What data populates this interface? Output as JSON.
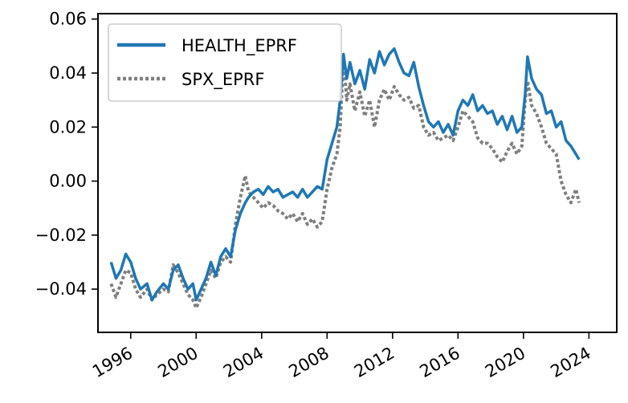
{
  "chart_data": {
    "type": "line",
    "title": "",
    "xlabel": "",
    "ylabel": "",
    "xlim": [
      1994.0,
      2025.7
    ],
    "ylim": [
      -0.056,
      0.062
    ],
    "x_ticks": [
      1996,
      2000,
      2004,
      2008,
      2012,
      2016,
      2020,
      2024
    ],
    "x_tick_labels": [
      "1996",
      "2000",
      "2004",
      "2008",
      "2012",
      "2016",
      "2020",
      "2024"
    ],
    "y_ticks": [
      -0.04,
      -0.02,
      0.0,
      0.02,
      0.04,
      0.06
    ],
    "y_tick_labels": [
      "−0.04",
      "−0.02",
      "0.00",
      "0.02",
      "0.04",
      "0.06"
    ],
    "grid": false,
    "legend": {
      "position": "top-left"
    },
    "series": [
      {
        "name": "HEALTH_EPRF",
        "color": "#1f77b4",
        "style": "solid",
        "x": [
          1994.8,
          1995.1,
          1995.4,
          1995.7,
          1996.0,
          1996.3,
          1996.6,
          1997.0,
          1997.3,
          1997.6,
          1998.0,
          1998.3,
          1998.6,
          1998.9,
          1999.2,
          1999.5,
          1999.8,
          2000.0,
          2000.3,
          2000.6,
          2000.9,
          2001.2,
          2001.5,
          2001.8,
          2002.1,
          2002.4,
          2002.7,
          2003.0,
          2003.2,
          2003.5,
          2003.8,
          2004.1,
          2004.4,
          2004.7,
          2005.0,
          2005.3,
          2005.6,
          2005.9,
          2006.2,
          2006.5,
          2006.8,
          2007.1,
          2007.4,
          2007.7,
          2008.0,
          2008.3,
          2008.6,
          2008.8,
          2009.0,
          2009.2,
          2009.4,
          2009.7,
          2010.0,
          2010.3,
          2010.6,
          2010.9,
          2011.2,
          2011.5,
          2011.8,
          2012.1,
          2012.4,
          2012.7,
          2013.0,
          2013.3,
          2013.6,
          2013.9,
          2014.2,
          2014.5,
          2014.8,
          2015.1,
          2015.4,
          2015.7,
          2016.0,
          2016.3,
          2016.6,
          2016.9,
          2017.2,
          2017.5,
          2017.8,
          2018.1,
          2018.4,
          2018.7,
          2019.0,
          2019.3,
          2019.6,
          2019.9,
          2020.1,
          2020.25,
          2020.5,
          2020.8,
          2021.1,
          2021.4,
          2021.7,
          2022.0,
          2022.3,
          2022.6,
          2022.9,
          2023.2,
          2023.4
        ],
        "y": [
          -0.03,
          -0.036,
          -0.033,
          -0.027,
          -0.03,
          -0.036,
          -0.04,
          -0.038,
          -0.044,
          -0.041,
          -0.038,
          -0.04,
          -0.033,
          -0.031,
          -0.036,
          -0.04,
          -0.038,
          -0.044,
          -0.04,
          -0.036,
          -0.03,
          -0.035,
          -0.028,
          -0.025,
          -0.028,
          -0.018,
          -0.012,
          -0.008,
          -0.006,
          -0.004,
          -0.003,
          -0.005,
          -0.002,
          -0.004,
          -0.003,
          -0.006,
          -0.005,
          -0.004,
          -0.006,
          -0.003,
          -0.006,
          -0.004,
          -0.002,
          -0.003,
          0.008,
          0.014,
          0.02,
          0.03,
          0.047,
          0.038,
          0.044,
          0.036,
          0.041,
          0.034,
          0.045,
          0.04,
          0.048,
          0.043,
          0.047,
          0.049,
          0.044,
          0.04,
          0.039,
          0.044,
          0.035,
          0.028,
          0.022,
          0.02,
          0.022,
          0.018,
          0.021,
          0.017,
          0.026,
          0.03,
          0.028,
          0.032,
          0.026,
          0.028,
          0.025,
          0.026,
          0.021,
          0.024,
          0.019,
          0.024,
          0.018,
          0.02,
          0.032,
          0.046,
          0.038,
          0.034,
          0.032,
          0.025,
          0.026,
          0.02,
          0.022,
          0.015,
          0.013,
          0.01,
          0.008
        ]
      },
      {
        "name": "SPX_EPRF",
        "color": "#7f7f7f",
        "style": "dotted",
        "x": [
          1994.8,
          1995.1,
          1995.4,
          1995.7,
          1996.0,
          1996.3,
          1996.6,
          1997.0,
          1997.3,
          1997.6,
          1998.0,
          1998.3,
          1998.6,
          1998.9,
          1999.2,
          1999.5,
          1999.8,
          2000.0,
          2000.3,
          2000.6,
          2000.9,
          2001.2,
          2001.5,
          2001.8,
          2002.1,
          2002.4,
          2002.7,
          2003.0,
          2003.2,
          2003.5,
          2003.8,
          2004.1,
          2004.4,
          2004.7,
          2005.0,
          2005.3,
          2005.6,
          2005.9,
          2006.2,
          2006.5,
          2006.8,
          2007.1,
          2007.4,
          2007.7,
          2008.0,
          2008.3,
          2008.6,
          2008.8,
          2009.0,
          2009.2,
          2009.4,
          2009.7,
          2010.0,
          2010.3,
          2010.6,
          2010.9,
          2011.2,
          2011.5,
          2011.8,
          2012.1,
          2012.4,
          2012.7,
          2013.0,
          2013.3,
          2013.6,
          2013.9,
          2014.2,
          2014.5,
          2014.8,
          2015.1,
          2015.4,
          2015.7,
          2016.0,
          2016.3,
          2016.6,
          2016.9,
          2017.2,
          2017.5,
          2017.8,
          2018.1,
          2018.4,
          2018.7,
          2019.0,
          2019.3,
          2019.6,
          2019.9,
          2020.1,
          2020.25,
          2020.5,
          2020.8,
          2021.1,
          2021.4,
          2021.7,
          2022.0,
          2022.3,
          2022.6,
          2022.9,
          2023.2,
          2023.4
        ],
        "y": [
          -0.038,
          -0.043,
          -0.038,
          -0.033,
          -0.034,
          -0.04,
          -0.043,
          -0.04,
          -0.044,
          -0.042,
          -0.04,
          -0.041,
          -0.031,
          -0.034,
          -0.038,
          -0.042,
          -0.044,
          -0.047,
          -0.043,
          -0.038,
          -0.033,
          -0.036,
          -0.03,
          -0.028,
          -0.03,
          -0.016,
          -0.006,
          0.002,
          -0.004,
          -0.006,
          -0.008,
          -0.01,
          -0.008,
          -0.009,
          -0.011,
          -0.012,
          -0.014,
          -0.012,
          -0.015,
          -0.012,
          -0.016,
          -0.014,
          -0.017,
          -0.015,
          -0.003,
          0.005,
          0.01,
          0.02,
          0.046,
          0.03,
          0.036,
          0.026,
          0.033,
          0.024,
          0.03,
          0.02,
          0.03,
          0.034,
          0.03,
          0.035,
          0.032,
          0.03,
          0.031,
          0.027,
          0.028,
          0.02,
          0.017,
          0.018,
          0.015,
          0.016,
          0.017,
          0.015,
          0.02,
          0.026,
          0.024,
          0.022,
          0.016,
          0.014,
          0.014,
          0.012,
          0.009,
          0.007,
          0.011,
          0.014,
          0.01,
          0.013,
          0.03,
          0.037,
          0.028,
          0.025,
          0.02,
          0.014,
          0.012,
          0.01,
          0.0,
          -0.005,
          -0.008,
          -0.003,
          -0.008
        ]
      }
    ]
  }
}
